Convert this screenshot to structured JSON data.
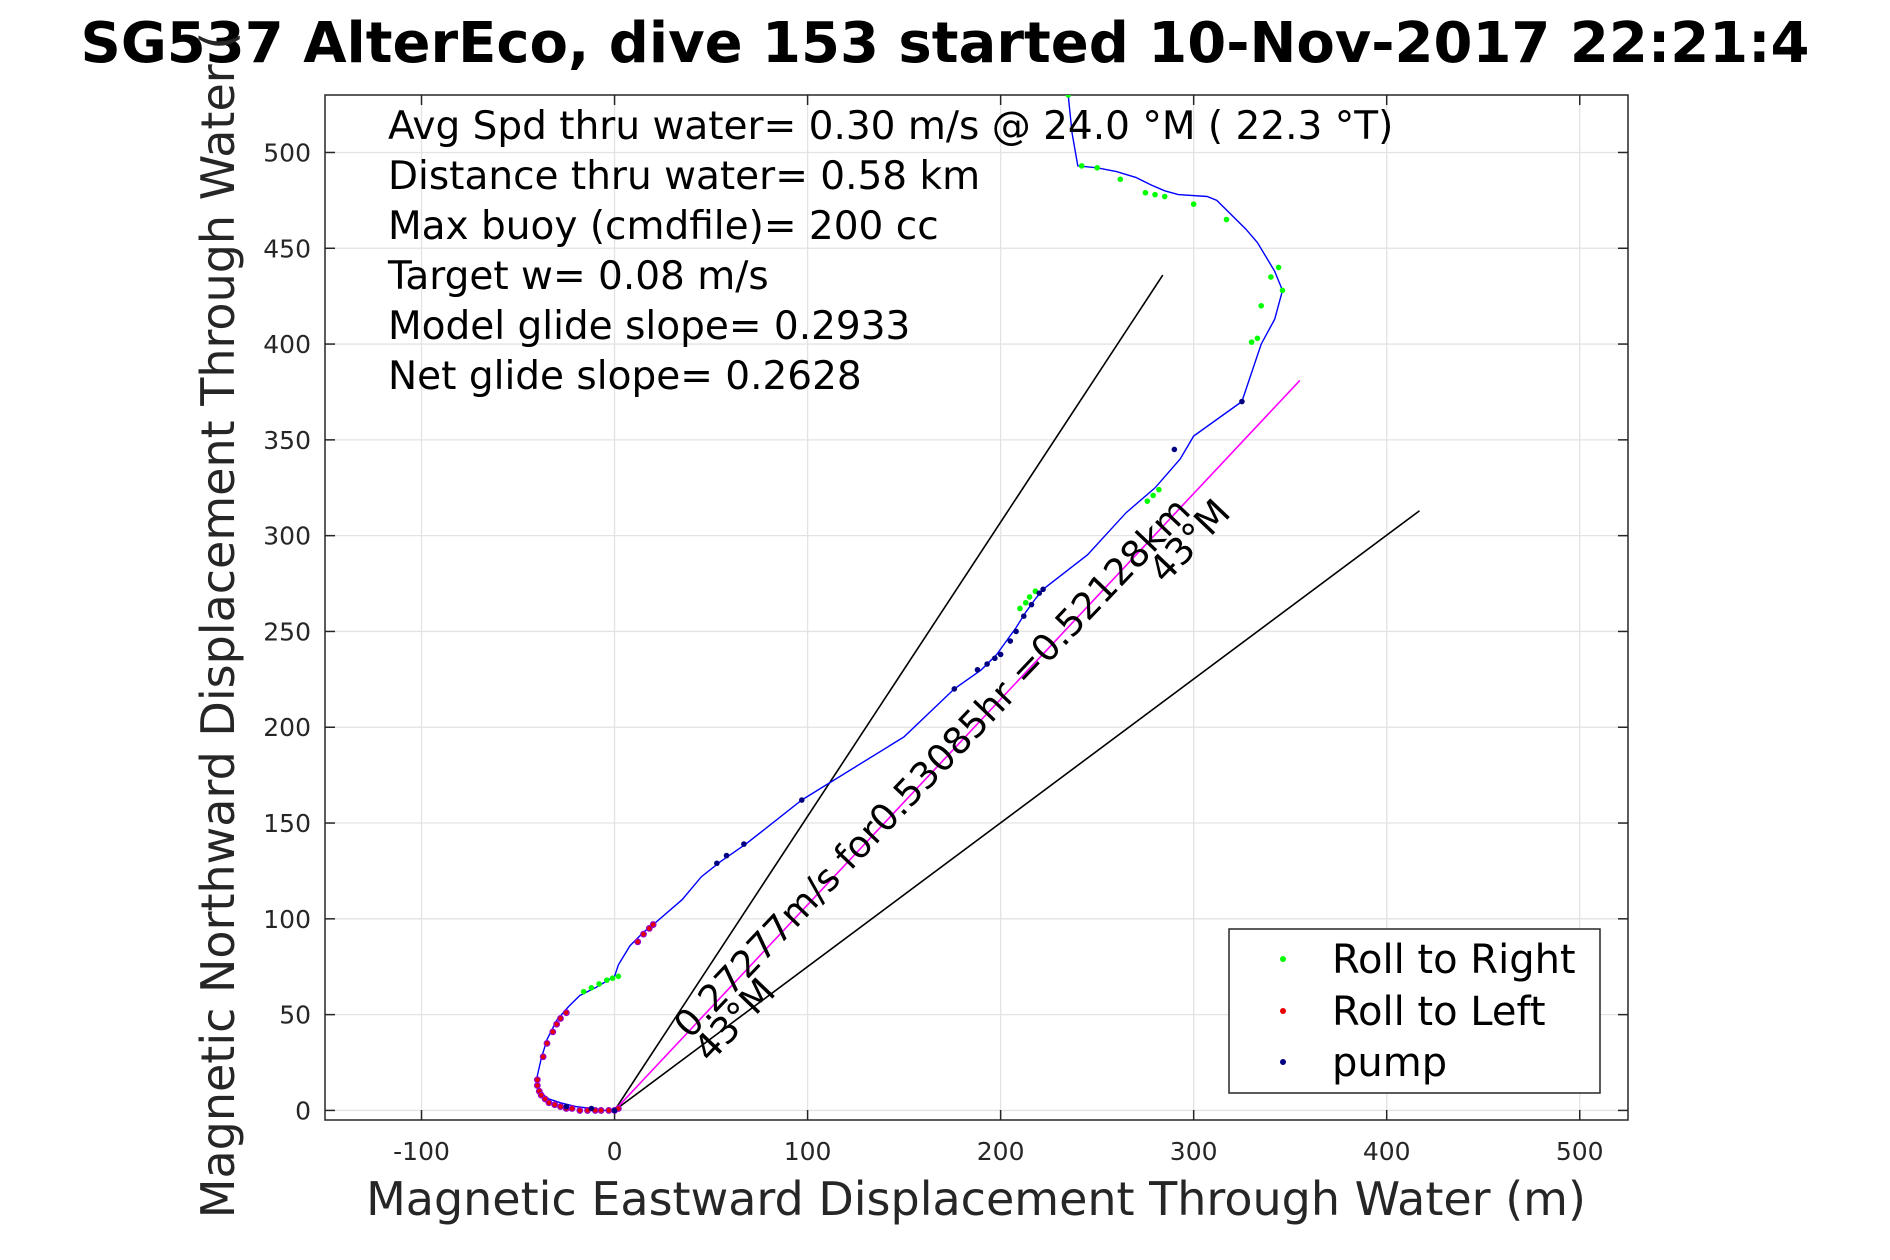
{
  "chart_data": {
    "type": "scatter",
    "title": "SG537 AlterEco, dive 153 started 10-Nov-2017 22:21:4",
    "xlabel": "Magnetic Eastward Displacement Through Water (m)",
    "ylabel": "Magnetic Northward Displacement Through Water (",
    "xlim": [
      -150,
      525
    ],
    "ylim": [
      -5,
      530
    ],
    "xticks": [
      -100,
      0,
      100,
      200,
      300,
      400,
      500
    ],
    "yticks": [
      0,
      50,
      100,
      150,
      200,
      250,
      300,
      350,
      400,
      450,
      500
    ],
    "grid": true,
    "legend_position": "bottom-right",
    "info_lines": [
      "Avg Spd thru water=  0.30 m/s @  24.0 °M ( 22.3 °T)",
      "Distance thru water=  0.58 km",
      "Max buoy (cmdfile)= 200 cc",
      "Target w= 0.08 m/s",
      "Model glide slope= 0.2933",
      "Net glide slope= 0.2628"
    ],
    "annotations": {
      "current": "0.27277m/s for0.53085hr =0.52128km",
      "heading_far": "43°M",
      "heading_near": "43°M"
    },
    "track": {
      "name": "",
      "color": "#0000ff",
      "x": [
        0,
        -5,
        -12,
        -20,
        -28,
        -34,
        -38,
        -40,
        -40,
        -38,
        -35,
        -30,
        -24,
        -18,
        -10,
        -5,
        0,
        2,
        8,
        15,
        20,
        35,
        45,
        55,
        68,
        97,
        150,
        176,
        190,
        198,
        203,
        208,
        213,
        218,
        222,
        245,
        265,
        280,
        293,
        300,
        325,
        335,
        342,
        346,
        342,
        333,
        327,
        312,
        307,
        292,
        285,
        278,
        270,
        260,
        250,
        240,
        237,
        235
      ],
      "y": [
        0,
        0,
        1,
        2,
        4,
        6,
        9,
        13,
        18,
        27,
        37,
        47,
        54,
        60,
        64,
        67,
        70,
        76,
        86,
        93,
        97,
        110,
        122,
        130,
        139,
        162,
        195,
        220,
        230,
        238,
        245,
        252,
        260,
        267,
        272,
        290,
        312,
        325,
        340,
        352,
        370,
        400,
        413,
        428,
        438,
        453,
        460,
        475,
        477,
        478,
        480,
        483,
        487,
        490,
        492,
        493,
        510,
        530
      ]
    },
    "series": [
      {
        "name": "Roll to Right",
        "color": "#00ff00",
        "x": [
          -16,
          -12,
          -8,
          -4,
          -1,
          2,
          210,
          213,
          215,
          218,
          276,
          279,
          282,
          330,
          335,
          340,
          344,
          346,
          333,
          317,
          300,
          285,
          280,
          275,
          262,
          250,
          242,
          235
        ],
        "y": [
          62,
          64,
          66,
          68,
          69,
          70,
          262,
          265,
          268,
          271,
          318,
          321,
          324,
          401,
          420,
          435,
          440,
          428,
          403,
          465,
          473,
          477,
          478,
          479,
          486,
          492,
          493,
          530
        ]
      },
      {
        "name": "Roll to Left",
        "color": "#e60000",
        "x": [
          -40,
          -40,
          -39,
          -38,
          -36,
          -34,
          -31,
          -28,
          -25,
          -22,
          -18,
          -14,
          -10,
          -7,
          -3,
          0,
          2,
          -37,
          -35,
          -32,
          -30,
          -28,
          -25,
          12,
          15,
          18,
          20
        ],
        "y": [
          16,
          13,
          10,
          8,
          6,
          4,
          3,
          2,
          1,
          1,
          0,
          0,
          0,
          0,
          0,
          0,
          1,
          28,
          35,
          41,
          45,
          48,
          51,
          88,
          92,
          95,
          97
        ],
        "edge_color": "#9900cc"
      },
      {
        "name": "pump",
        "color": "#000080",
        "x": [
          0,
          -12,
          -25,
          53,
          58,
          67,
          97,
          176,
          188,
          193,
          197,
          200,
          205,
          208,
          212,
          216,
          220,
          222,
          290,
          325
        ],
        "y": [
          0,
          1,
          2,
          129,
          133,
          139,
          162,
          220,
          230,
          233,
          236,
          238,
          245,
          250,
          258,
          264,
          270,
          272,
          345,
          370
        ]
      }
    ],
    "lines": [
      {
        "name": "",
        "color": "#000000",
        "x": [
          0,
          284
        ],
        "y": [
          0,
          436
        ]
      },
      {
        "name": "",
        "color": "#000000",
        "x": [
          0,
          417
        ],
        "y": [
          0,
          313
        ]
      },
      {
        "name": "",
        "color": "#ff00ff",
        "x": [
          0,
          355
        ],
        "y": [
          0,
          381
        ]
      }
    ]
  }
}
